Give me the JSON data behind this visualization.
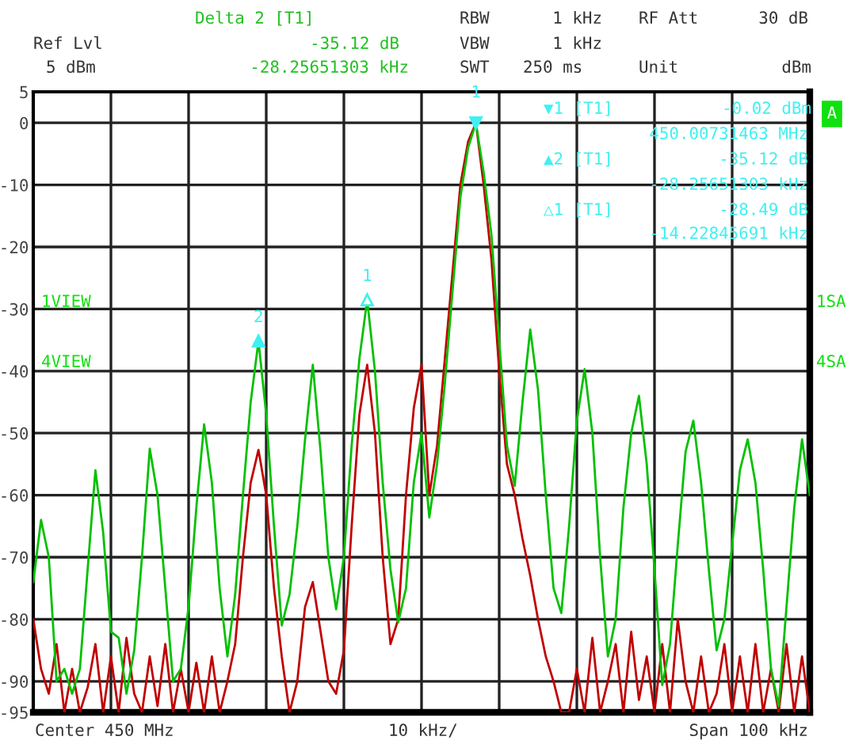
{
  "chart_data": {
    "type": "line",
    "categories": [
      null,
      null,
      null,
      null,
      null,
      null,
      null,
      null,
      null,
      null,
      null,
      null,
      null,
      null,
      null,
      null,
      null,
      null,
      null,
      null,
      null,
      null,
      null,
      null,
      null,
      null,
      null,
      null,
      null,
      null,
      null,
      null,
      null,
      null,
      null,
      null,
      null,
      null,
      null,
      null,
      null,
      null,
      null,
      null,
      null,
      null,
      null,
      null,
      null,
      null,
      null,
      null,
      null,
      null,
      null,
      null,
      null,
      null,
      null,
      null,
      null,
      null,
      null,
      null,
      null,
      null,
      null,
      null,
      null,
      null,
      null,
      null,
      null,
      null,
      null,
      null,
      null,
      null,
      null,
      null,
      null,
      null,
      null,
      null,
      null,
      null,
      null,
      null,
      null,
      null,
      null,
      null,
      null,
      null,
      null,
      null,
      null,
      null,
      null,
      null,
      null
    ],
    "ylim": [
      -95,
      5
    ],
    "yticks": [
      5,
      0,
      -10,
      -20,
      -30,
      -40,
      -50,
      -60,
      -70,
      -80,
      -90,
      -95
    ],
    "grid": true,
    "tick_labels": "y",
    "marker": "none",
    "line_style": "solid",
    "series": [
      {
        "color": "#c00000",
        "values": [
          -80,
          -88,
          -92,
          -84,
          -95,
          -88,
          -95,
          -91,
          -84,
          -95,
          -86,
          -95,
          -83,
          -92,
          -95,
          -86,
          -94,
          -84,
          -95,
          -88,
          -95,
          -87,
          -95,
          -86,
          -95,
          -90,
          -84,
          -70,
          -58,
          -52.7,
          -60,
          -75,
          -86,
          -95,
          -90,
          -78,
          -74,
          -82,
          -90,
          -92,
          -85,
          -65,
          -47,
          -39,
          -50,
          -70,
          -84,
          -80,
          -60,
          -46,
          -39,
          -60,
          -52,
          -38,
          -24,
          -10,
          -3,
          -0.02,
          -10,
          -22,
          -40,
          -55,
          -60,
          -67,
          -73,
          -80,
          -86,
          -90,
          -95,
          -95,
          -88,
          -95,
          -83,
          -95,
          -90,
          -84,
          -95,
          -82,
          -93,
          -86,
          -95,
          -84,
          -95,
          -80,
          -90,
          -95,
          -86,
          -95,
          -92,
          -84,
          -95,
          -86,
          -95,
          -84,
          -95,
          -88,
          -95,
          -84,
          -95,
          -86,
          -95
        ]
      },
      {
        "color": "#00c000",
        "values": [
          -74,
          -64,
          -70,
          -90,
          -88,
          -92,
          -88,
          -72,
          -56,
          -66,
          -82,
          -83,
          -92,
          -85,
          -70,
          -52.5,
          -60,
          -75,
          -90,
          -88,
          -78,
          -62,
          -48.6,
          -58,
          -75,
          -86,
          -76,
          -60,
          -45,
          -35.14,
          -47,
          -65,
          -81,
          -76,
          -65,
          -51,
          -39,
          -53,
          -70,
          -78.4,
          -70,
          -52,
          -38,
          -28.51,
          -40,
          -58,
          -72,
          -80.5,
          -75,
          -58,
          -50,
          -63.6,
          -55,
          -42,
          -27,
          -12,
          -4,
          -0.02,
          -8,
          -18,
          -35,
          -52,
          -58.5,
          -45,
          -33.3,
          -43,
          -60,
          -75,
          -79,
          -65,
          -48,
          -39.7,
          -50,
          -70,
          -86,
          -80,
          -62,
          -50,
          -44,
          -55,
          -72,
          -90.6,
          -84,
          -68,
          -53,
          -48,
          -58,
          -72,
          -85,
          -80,
          -68,
          -56,
          -51,
          -58,
          -72,
          -88,
          -94,
          -78,
          -62,
          -51,
          -60
        ]
      }
    ],
    "annotations": [
      {
        "text": "1",
        "y": -0.02
      },
      {
        "text": "2",
        "y": -35.14
      },
      {
        "text": "1",
        "y": -28.51
      },
      "Delta 2 [T1]",
      "-35.12 dB",
      "-28.25651303 kHz",
      "Ref Lvl",
      "5 dBm",
      "RBW",
      "1 kHz",
      "VBW",
      "1 kHz",
      "SWT",
      "250 ms",
      "RF Att",
      "30 dB",
      "Unit",
      "dBm",
      "▼1 [T1]",
      "-0.02 dBm",
      "450.00731463 MHz",
      "▲2 [T1]",
      "-35.12 dB",
      "-28.25651303 kHz",
      "△1 [T1]",
      "-28.49 dB",
      "-14.22845691 kHz",
      "1VIEW",
      "4VIEW",
      "1SA",
      "4SA",
      "A",
      "Center 450 MHz",
      "10 kHz/",
      "Span 100 kHz"
    ]
  }
}
